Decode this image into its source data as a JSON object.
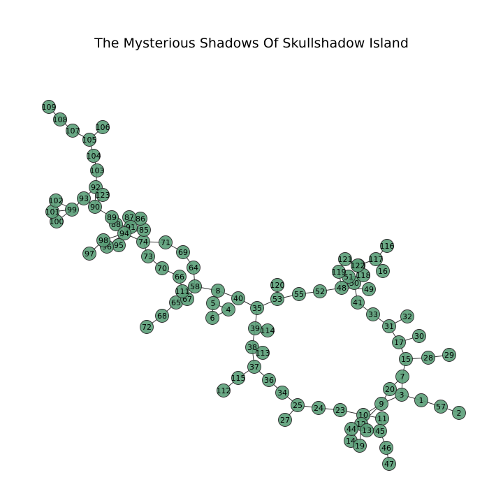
{
  "title": "The Mysterious Shadows Of Skullshadow Island",
  "colors": {
    "node_fill": "#5a9e78",
    "node_stroke": "#2b2b2b",
    "edge": "#333333",
    "background": "#ffffff"
  },
  "graph": {
    "nodes": [
      "1",
      "2",
      "3",
      "4",
      "5",
      "6",
      "7",
      "8",
      "9",
      "10",
      "11",
      "12",
      "13",
      "14",
      "15",
      "16",
      "17",
      "19",
      "20",
      "23",
      "24",
      "25",
      "27",
      "28",
      "29",
      "30",
      "31",
      "32",
      "33",
      "34",
      "35",
      "36",
      "37",
      "38",
      "39",
      "40",
      "41",
      "44",
      "45",
      "46",
      "47",
      "48",
      "49",
      "50",
      "51",
      "52",
      "53",
      "55",
      "57",
      "58",
      "64",
      "65",
      "66",
      "67",
      "68",
      "69",
      "70",
      "71",
      "72",
      "73",
      "74",
      "85",
      "86",
      "87",
      "88",
      "89",
      "90",
      "91",
      "92",
      "93",
      "94",
      "95",
      "96",
      "97",
      "98",
      "99",
      "100",
      "101",
      "102",
      "103",
      "104",
      "105",
      "106",
      "107",
      "108",
      "109",
      "110",
      "111",
      "112",
      "113",
      "114",
      "115",
      "116",
      "117",
      "118",
      "119",
      "120",
      "121",
      "122",
      "123"
    ],
    "edges": [
      [
        "109",
        "108"
      ],
      [
        "108",
        "107"
      ],
      [
        "107",
        "105"
      ],
      [
        "106",
        "105"
      ],
      [
        "105",
        "104"
      ],
      [
        "104",
        "103"
      ],
      [
        "103",
        "92"
      ],
      [
        "92",
        "93"
      ],
      [
        "92",
        "123"
      ],
      [
        "92",
        "90"
      ],
      [
        "93",
        "90"
      ],
      [
        "93",
        "99"
      ],
      [
        "123",
        "90"
      ],
      [
        "99",
        "102"
      ],
      [
        "99",
        "101"
      ],
      [
        "99",
        "100"
      ],
      [
        "102",
        "101"
      ],
      [
        "101",
        "100"
      ],
      [
        "90",
        "89"
      ],
      [
        "89",
        "88"
      ],
      [
        "88",
        "94"
      ],
      [
        "88",
        "91"
      ],
      [
        "94",
        "87"
      ],
      [
        "94",
        "86"
      ],
      [
        "94",
        "85"
      ],
      [
        "94",
        "91"
      ],
      [
        "91",
        "87"
      ],
      [
        "91",
        "86"
      ],
      [
        "91",
        "85"
      ],
      [
        "87",
        "86"
      ],
      [
        "94",
        "98"
      ],
      [
        "94",
        "96"
      ],
      [
        "94",
        "95"
      ],
      [
        "98",
        "97"
      ],
      [
        "98",
        "96"
      ],
      [
        "94",
        "74"
      ],
      [
        "74",
        "73"
      ],
      [
        "74",
        "71"
      ],
      [
        "71",
        "69"
      ],
      [
        "69",
        "64"
      ],
      [
        "64",
        "58"
      ],
      [
        "73",
        "70"
      ],
      [
        "70",
        "66"
      ],
      [
        "66",
        "111"
      ],
      [
        "58",
        "111"
      ],
      [
        "58",
        "67"
      ],
      [
        "58",
        "8"
      ],
      [
        "111",
        "67"
      ],
      [
        "111",
        "65"
      ],
      [
        "67",
        "65"
      ],
      [
        "65",
        "68"
      ],
      [
        "68",
        "72"
      ],
      [
        "8",
        "40"
      ],
      [
        "40",
        "35"
      ],
      [
        "8",
        "5"
      ],
      [
        "5",
        "6"
      ],
      [
        "5",
        "4"
      ],
      [
        "6",
        "4"
      ],
      [
        "35",
        "53"
      ],
      [
        "53",
        "120"
      ],
      [
        "53",
        "55"
      ],
      [
        "55",
        "52"
      ],
      [
        "52",
        "48"
      ],
      [
        "48",
        "119"
      ],
      [
        "48",
        "51"
      ],
      [
        "48",
        "50"
      ],
      [
        "48",
        "49"
      ],
      [
        "119",
        "121"
      ],
      [
        "119",
        "51"
      ],
      [
        "121",
        "122"
      ],
      [
        "121",
        "110"
      ],
      [
        "122",
        "118"
      ],
      [
        "110",
        "118"
      ],
      [
        "51",
        "50"
      ],
      [
        "50",
        "118"
      ],
      [
        "117",
        "116"
      ],
      [
        "117",
        "122"
      ],
      [
        "50",
        "41"
      ],
      [
        "41",
        "33"
      ],
      [
        "33",
        "31"
      ],
      [
        "31",
        "32"
      ],
      [
        "31",
        "17"
      ],
      [
        "17",
        "30"
      ],
      [
        "17",
        "15"
      ],
      [
        "15",
        "28"
      ],
      [
        "28",
        "29"
      ],
      [
        "15",
        "7"
      ],
      [
        "7",
        "20"
      ],
      [
        "7",
        "3"
      ],
      [
        "20",
        "9"
      ],
      [
        "20",
        "3"
      ],
      [
        "3",
        "1"
      ],
      [
        "1",
        "57"
      ],
      [
        "57",
        "2"
      ],
      [
        "3",
        "9"
      ],
      [
        "9",
        "10"
      ],
      [
        "9",
        "12"
      ],
      [
        "10",
        "23"
      ],
      [
        "10",
        "11"
      ],
      [
        "10",
        "13"
      ],
      [
        "12",
        "44"
      ],
      [
        "12",
        "14"
      ],
      [
        "12",
        "13"
      ],
      [
        "12",
        "45"
      ],
      [
        "12",
        "19"
      ],
      [
        "11",
        "45"
      ],
      [
        "13",
        "45"
      ],
      [
        "44",
        "14"
      ],
      [
        "14",
        "19"
      ],
      [
        "45",
        "46"
      ],
      [
        "46",
        "47"
      ],
      [
        "23",
        "24"
      ],
      [
        "24",
        "25"
      ],
      [
        "25",
        "27"
      ],
      [
        "25",
        "34"
      ],
      [
        "34",
        "36"
      ],
      [
        "36",
        "37"
      ],
      [
        "37",
        "115"
      ],
      [
        "115",
        "112"
      ],
      [
        "37",
        "38"
      ],
      [
        "38",
        "113"
      ],
      [
        "38",
        "39"
      ],
      [
        "39",
        "35"
      ],
      [
        "39",
        "114"
      ]
    ]
  }
}
